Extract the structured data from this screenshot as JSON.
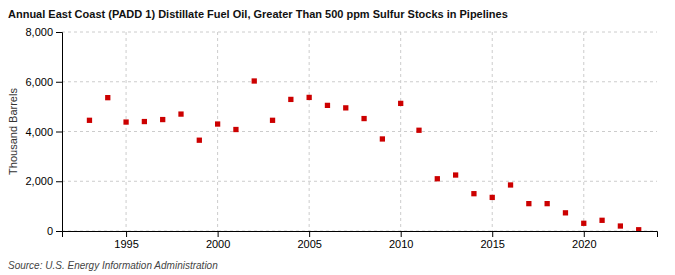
{
  "chart_data": {
    "type": "scatter",
    "title": "Annual East Coast (PADD 1) Distillate Fuel Oil, Greater Than 500 ppm Sulfur Stocks in Pipelines",
    "ylabel": "Thousand Barrels",
    "annotation": "Source: U.S. Energy Information Administration",
    "x": [
      1993,
      1994,
      1995,
      1996,
      1997,
      1998,
      1999,
      2000,
      2001,
      2002,
      2003,
      2004,
      2005,
      2006,
      2007,
      2008,
      2009,
      2010,
      2011,
      2012,
      2013,
      2014,
      2015,
      2016,
      2017,
      2018,
      2019,
      2020,
      2021,
      2022,
      2023
    ],
    "values": [
      4450,
      5360,
      4380,
      4400,
      4480,
      4700,
      3650,
      4300,
      4080,
      6030,
      4450,
      5290,
      5370,
      5050,
      4950,
      4520,
      3700,
      5130,
      4050,
      2100,
      2250,
      1500,
      1350,
      1850,
      1100,
      1100,
      730,
      310,
      430,
      200,
      50
    ],
    "color": "#cc0000",
    "marker": "square",
    "xlim": [
      1991.5,
      2024
    ],
    "xticks": [
      1995,
      2000,
      2005,
      2010,
      2015,
      2020
    ],
    "ylim": [
      0,
      8000
    ],
    "yticks": [
      0,
      {
        "value": 2000,
        "label": "2,000"
      },
      {
        "value": 4000,
        "label": "4,000"
      },
      {
        "value": 6000,
        "label": "6,000"
      },
      {
        "value": 8000,
        "label": "8,000"
      }
    ],
    "grid": true
  }
}
